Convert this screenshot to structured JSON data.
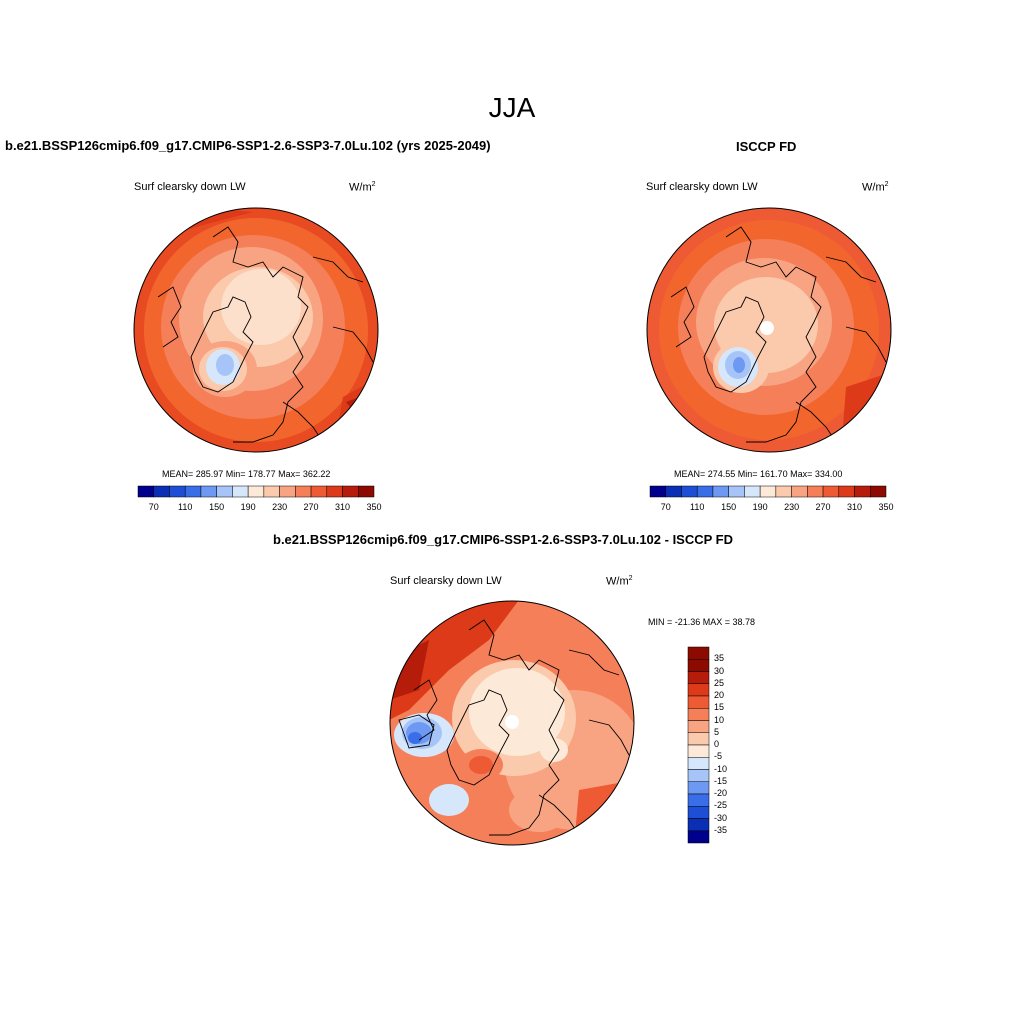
{
  "season": "JJA",
  "panel_left": {
    "title": "b.e21.BSSP126cmip6.f09_g17.CMIP6-SSP1-2.6-SSP3-7.0Lu.102 (yrs 2025-2049)",
    "subtitle": "Surf clearsky down LW",
    "units": "W/m",
    "units_sup": "2",
    "stats": "MEAN= 285.97  Min= 178.77  Max= 362.22"
  },
  "panel_right": {
    "title": "ISCCP FD",
    "subtitle": "Surf clearsky down LW",
    "units": "W/m",
    "units_sup": "2",
    "stats": "MEAN= 274.55  Min= 161.70  Max= 334.00"
  },
  "panel_diff": {
    "title": "b.e21.BSSP126cmip6.f09_g17.CMIP6-SSP1-2.6-SSP3-7.0Lu.102 - ISCCP FD",
    "subtitle": "Surf clearsky down LW",
    "units": "W/m",
    "units_sup": "2",
    "minmax": "MIN = -21.36 MAX =  38.78"
  },
  "colorbar_main": {
    "colors": [
      "#00008c",
      "#0a2fb4",
      "#1c4fd6",
      "#3a6ee8",
      "#6e99f2",
      "#a6c4f7",
      "#d6e6fb",
      "#fde9d8",
      "#fbc9ac",
      "#f8a482",
      "#f57f59",
      "#ee5a34",
      "#dc3a18",
      "#b61c0a",
      "#8c0a00"
    ],
    "tick_labels": [
      "70",
      "110",
      "150",
      "190",
      "230",
      "270",
      "310",
      "350"
    ]
  },
  "colorbar_diff": {
    "colors": [
      "#00008c",
      "#0a2fb4",
      "#1c4fd6",
      "#3a6ee8",
      "#6e99f2",
      "#a6c4f7",
      "#d6e6fb",
      "#fde9d8",
      "#fbc9ac",
      "#f8a482",
      "#f57f59",
      "#ee5a34",
      "#dc3a18",
      "#b61c0a",
      "#8c0a00"
    ],
    "tick_labels": [
      "35",
      "30",
      "25",
      "20",
      "15",
      "10",
      "5",
      "0",
      "-5",
      "-10",
      "-15",
      "-20",
      "-25",
      "-30",
      "-35"
    ]
  }
}
